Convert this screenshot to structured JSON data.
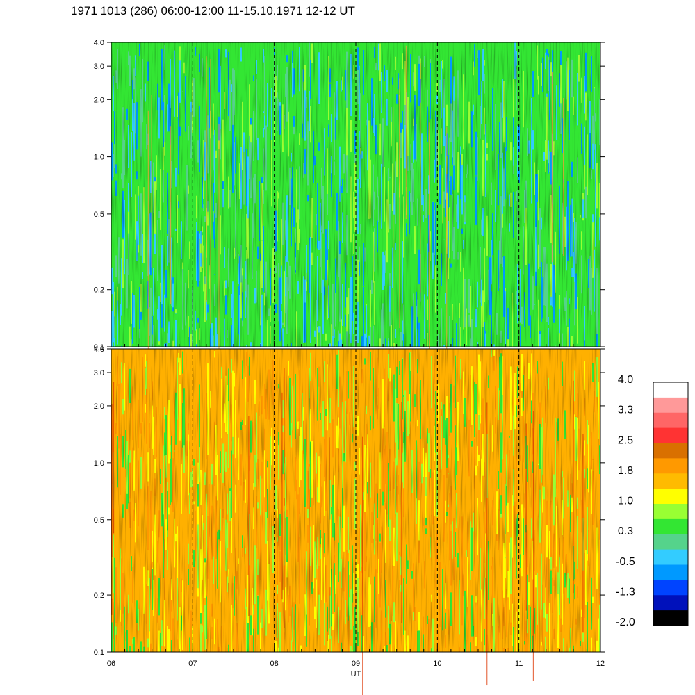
{
  "title": "1971 1013 (286) 06:00-12:00 11-15.10.1971  12-12 UT",
  "chart_data": {
    "type": "heatmap",
    "title": "1971 1013 (286) 06:00-12:00 11-15.10.1971  12-12 UT",
    "xlabel": "UT",
    "x_range": [
      6,
      12
    ],
    "x_ticks": [
      "06",
      "07",
      "08",
      "09",
      "10",
      "11",
      "12"
    ],
    "y_scale": "log",
    "y_range": [
      0.1,
      4.0
    ],
    "panels": [
      {
        "name": "upper",
        "y_ticks": [
          "0.1",
          "0.2",
          "0.5",
          "1.0",
          "2.0",
          "3.0",
          "4.0"
        ],
        "dominant_colors": [
          "#33e633",
          "#55d38b",
          "#99ff33",
          "#33ccff",
          "#0099ff"
        ]
      },
      {
        "name": "lower",
        "y_ticks": [
          "0.1",
          "0.2",
          "0.5",
          "1.0",
          "2.0",
          "3.0",
          "4.0"
        ],
        "dominant_colors": [
          "#ffb000",
          "#ff9900",
          "#ffff00",
          "#99ff33",
          "#33e633"
        ]
      }
    ],
    "colorbar": {
      "labels": [
        "4.0",
        "3.3",
        "2.5",
        "1.8",
        "1.0",
        "0.3",
        "-0.5",
        "-1.3",
        "-2.0"
      ],
      "colors": [
        "#ffffff",
        "#ff9999",
        "#ff6666",
        "#ff3333",
        "#d97000",
        "#ff9900",
        "#ffbb00",
        "#ffff00",
        "#99ff33",
        "#33e633",
        "#55d38b",
        "#33ccff",
        "#0099ff",
        "#0044ff",
        "#0011bb",
        "#000000"
      ]
    }
  }
}
